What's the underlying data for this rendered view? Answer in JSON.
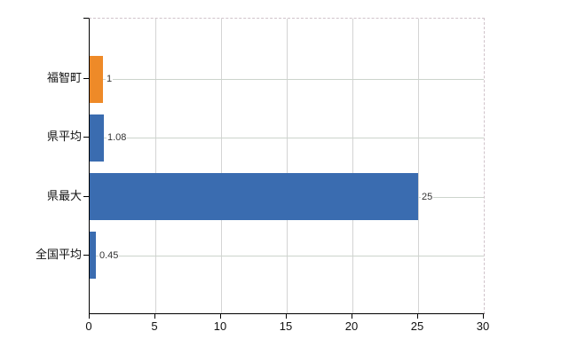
{
  "chart": {
    "background": "#ffffff",
    "axis_color": "#000000",
    "vgrid_color": "#d4d4d4",
    "hgrid_color": "#ccd4cc",
    "border_dash_color": "#d0c3ca",
    "tick_label_color": "#111111",
    "value_label_color": "#333333"
  },
  "chart_data": {
    "type": "bar",
    "orientation": "horizontal",
    "title": "",
    "xlabel": "",
    "ylabel": "",
    "categories": [
      "福智町",
      "県平均",
      "県最大",
      "全国平均"
    ],
    "values": [
      1,
      1.08,
      25,
      0.45
    ],
    "value_labels": [
      "1",
      "1.08",
      "25",
      "0.45"
    ],
    "bar_colors": [
      "#ee8a28",
      "#3a6cb0",
      "#3a6cb0",
      "#3a6cb0"
    ],
    "x_ticks": [
      0,
      5,
      10,
      15,
      20,
      25,
      30
    ],
    "x_tick_labels": [
      "0",
      "5",
      "10",
      "15",
      "20",
      "25",
      "30"
    ],
    "xlim": [
      0,
      30
    ],
    "grid": "on",
    "legend": "none"
  }
}
